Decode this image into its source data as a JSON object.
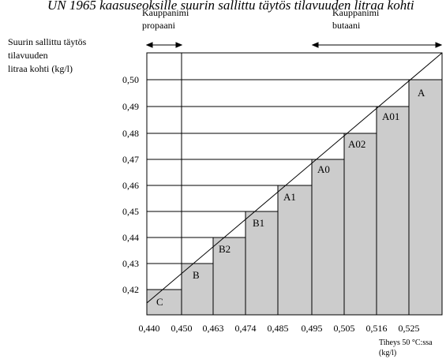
{
  "header_title": "UN 1965 kaasuseoksille suurin sallittu täytös tilavuuden litraa kohti",
  "range_labels": {
    "propane_line1": "Kauppanimi",
    "propane_line2": "propaani",
    "butane_line1": "Kauppanimi",
    "butane_line2": "butaani"
  },
  "chart_data": {
    "type": "bar",
    "ylabel": [
      "Suurin sallittu täytös",
      "tilavuuden",
      "litraa kohti (kg/l)"
    ],
    "xlabel": [
      "Tiheys 50 °C:ssa",
      "(kg/l)"
    ],
    "x_ticks": [
      "0,440",
      "0,450",
      "0,463",
      "0,474",
      "0,485",
      "0,495",
      "0,505",
      "0,516",
      "0,525"
    ],
    "y_ticks": [
      "0,42",
      "0,43",
      "0,44",
      "0,45",
      "0,46",
      "0,47",
      "0,48",
      "0,49",
      "0,50"
    ],
    "ylim": [
      0.41,
      0.51
    ],
    "categories": [
      "C",
      "B",
      "B2",
      "B1",
      "A1",
      "A0",
      "A02",
      "A01",
      "A"
    ],
    "values": [
      0.42,
      0.43,
      0.44,
      0.45,
      0.46,
      0.47,
      0.48,
      0.49,
      0.5
    ],
    "bar_color": "#cccccc"
  }
}
